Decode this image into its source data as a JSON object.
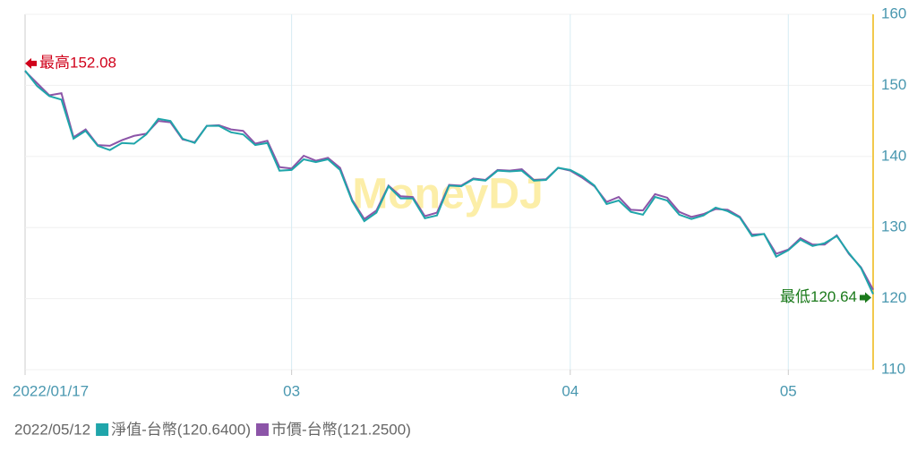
{
  "chart_data": {
    "type": "line",
    "watermark": "MoneyDJ",
    "legend_date": "2022/05/12",
    "annotations": {
      "max": "最高152.08",
      "min": "最低120.64"
    },
    "categories": [
      "2022/01/17",
      null,
      null,
      null,
      null,
      null,
      null,
      null,
      null,
      null,
      null,
      null,
      null,
      null,
      null,
      null,
      null,
      null,
      null,
      null,
      null,
      null,
      "03",
      null,
      null,
      null,
      null,
      null,
      null,
      null,
      null,
      null,
      null,
      null,
      null,
      null,
      null,
      null,
      null,
      null,
      null,
      null,
      null,
      null,
      null,
      "04",
      null,
      null,
      null,
      null,
      null,
      null,
      null,
      null,
      null,
      null,
      null,
      null,
      null,
      null,
      null,
      null,
      null,
      "05",
      null,
      null,
      null,
      null,
      null,
      null,
      null
    ],
    "series": [
      {
        "name": "市價-台幣(121.2500)",
        "color": "#8c55a8",
        "values": [
          152.0,
          150.3,
          148.6,
          148.9,
          142.7,
          143.8,
          141.6,
          141.5,
          142.3,
          142.9,
          143.2,
          145.0,
          144.8,
          142.4,
          142.0,
          144.3,
          144.4,
          143.8,
          143.6,
          141.8,
          142.2,
          138.5,
          138.3,
          140.1,
          139.4,
          139.8,
          138.4,
          133.9,
          131.2,
          132.4,
          135.9,
          134.4,
          134.3,
          131.6,
          132.1,
          136.0,
          135.9,
          136.9,
          136.7,
          138.1,
          138.0,
          138.2,
          136.7,
          136.8,
          138.4,
          138.0,
          137.0,
          135.8,
          133.6,
          134.3,
          132.5,
          132.4,
          134.7,
          134.2,
          132.2,
          131.5,
          131.9,
          132.6,
          132.5,
          131.5,
          129.0,
          129.1,
          126.3,
          126.9,
          128.5,
          127.6,
          127.6,
          128.9,
          126.3,
          124.4,
          121.25
        ]
      },
      {
        "name": "淨值-台幣(120.6400)",
        "color": "#1fa5aa",
        "values": [
          152.08,
          149.9,
          148.5,
          148.0,
          142.5,
          143.6,
          141.5,
          140.9,
          141.9,
          141.8,
          143.1,
          145.3,
          145.0,
          142.5,
          141.9,
          144.3,
          144.3,
          143.4,
          143.1,
          141.6,
          141.9,
          138.0,
          138.1,
          139.6,
          139.2,
          139.6,
          138.1,
          133.7,
          130.9,
          132.1,
          135.8,
          134.1,
          134.1,
          131.3,
          131.7,
          135.9,
          135.8,
          136.8,
          136.6,
          138.0,
          137.9,
          138.0,
          136.6,
          136.7,
          138.4,
          138.1,
          137.2,
          135.9,
          133.3,
          133.8,
          132.2,
          131.8,
          134.3,
          133.8,
          131.8,
          131.2,
          131.7,
          132.8,
          132.3,
          131.4,
          128.8,
          129.1,
          125.9,
          126.8,
          128.3,
          127.4,
          127.8,
          128.8,
          126.4,
          124.3,
          120.64
        ]
      }
    ],
    "legend_order": [
      1,
      0
    ],
    "ylim": [
      110,
      160
    ],
    "yticks": [
      110,
      120,
      130,
      140,
      150,
      160
    ],
    "y_axis_side": "right",
    "grid": true
  }
}
